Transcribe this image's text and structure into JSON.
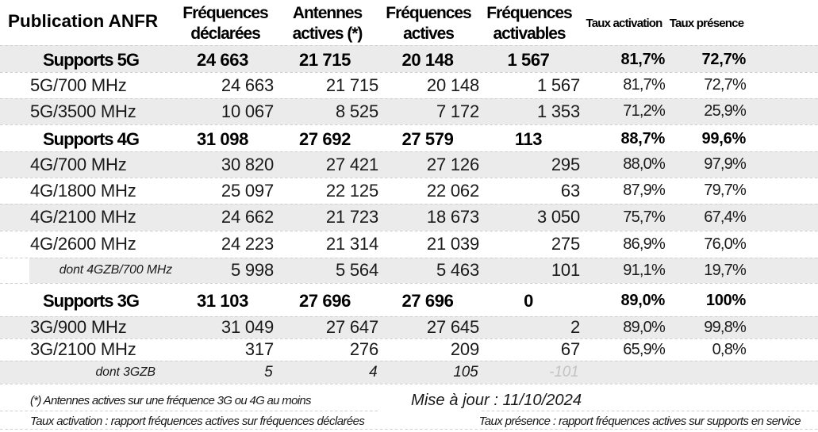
{
  "chart_data": {
    "type": "table",
    "title": "Publication ANFR",
    "columns": [
      "Fréquences déclarées",
      "Antennes actives (*)",
      "Fréquences actives",
      "Fréquences activables",
      "Taux activation",
      "Taux présence"
    ],
    "rows": [
      {
        "label": "Supports 5G",
        "values": [
          "24 663",
          "21 715",
          "20 148",
          "1 567",
          "81,7%",
          "72,7%"
        ]
      },
      {
        "label": "5G/700 MHz",
        "values": [
          "24 663",
          "21 715",
          "20 148",
          "1 567",
          "81,7%",
          "72,7%"
        ]
      },
      {
        "label": "5G/3500 MHz",
        "values": [
          "10 067",
          "8 525",
          "7 172",
          "1 353",
          "71,2%",
          "25,9%"
        ]
      },
      {
        "label": "Supports 4G",
        "values": [
          "31 098",
          "27 692",
          "27 579",
          "113",
          "88,7%",
          "99,6%"
        ]
      },
      {
        "label": "4G/700 MHz",
        "values": [
          "30 820",
          "27 421",
          "27 126",
          "295",
          "88,0%",
          "97,9%"
        ]
      },
      {
        "label": "4G/1800 MHz",
        "values": [
          "25 097",
          "22 125",
          "22 062",
          "63",
          "87,9%",
          "79,7%"
        ]
      },
      {
        "label": "4G/2100 MHz",
        "values": [
          "24 662",
          "21 723",
          "18 673",
          "3 050",
          "75,7%",
          "67,4%"
        ]
      },
      {
        "label": "4G/2600 MHz",
        "values": [
          "24 223",
          "21 314",
          "21 039",
          "275",
          "86,9%",
          "76,0%"
        ]
      },
      {
        "label": "dont 4GZB/700 MHz",
        "values": [
          "5 998",
          "5 564",
          "5 463",
          "101",
          "91,1%",
          "19,7%"
        ]
      },
      {
        "label": "Supports 3G",
        "values": [
          "31 103",
          "27 696",
          "27 696",
          "0",
          "89,0%",
          "100%"
        ]
      },
      {
        "label": "3G/900 MHz",
        "values": [
          "31 049",
          "27 647",
          "27 645",
          "2",
          "89,0%",
          "99,8%"
        ]
      },
      {
        "label": "3G/2100 MHz",
        "values": [
          "317",
          "276",
          "209",
          "67",
          "65,9%",
          "0,8%"
        ]
      },
      {
        "label": "dont 3GZB",
        "values": [
          "5",
          "4",
          "105",
          "-101",
          "",
          ""
        ]
      }
    ],
    "footnotes": [
      "(*) Antennes actives sur une fréquence 3G ou 4G au moins",
      "Mise à jour : 11/10/2024",
      "Taux activation : rapport fréquences actives sur fréquences déclarées",
      "Taux présence : rapport fréquences actives sur supports en service"
    ]
  },
  "header": {
    "title": "Publication ANFR",
    "columns": [
      {
        "id": "declarees",
        "line1": "Fréquences",
        "line2": "déclarées"
      },
      {
        "id": "antennes",
        "line1": "Antennes",
        "line2": "actives (*)"
      },
      {
        "id": "actives",
        "line1": "Fréquences",
        "line2": "actives"
      },
      {
        "id": "activables",
        "line1": "Fréquences",
        "line2": "activables"
      },
      {
        "id": "taux-activation",
        "line1": "Taux activation",
        "line2": "",
        "small": true
      },
      {
        "id": "taux-presence",
        "line1": "Taux présence",
        "line2": "",
        "small": true
      }
    ]
  },
  "rows": [
    {
      "id": "supports5g",
      "type": "section",
      "label": "Supports 5G",
      "values": [
        "24 663",
        "21 715",
        "20 148",
        "1 567",
        "81,7%",
        "72,7%"
      ]
    },
    {
      "id": "5g700",
      "type": "freq",
      "label": "5G/700 MHz",
      "values": [
        "24 663",
        "21 715",
        "20 148",
        "1 567",
        "81,7%",
        "72,7%"
      ]
    },
    {
      "id": "5g3500",
      "type": "freq",
      "label": "5G/3500 MHz",
      "values": [
        "10 067",
        "8 525",
        "7 172",
        "1 353",
        "71,2%",
        "25,9%"
      ]
    },
    {
      "id": "supports4g",
      "type": "section",
      "label": "Supports 4G",
      "values": [
        "31 098",
        "27 692",
        "27 579",
        "113",
        "88,7%",
        "99,6%"
      ]
    },
    {
      "id": "4g700",
      "type": "freq",
      "label": "4G/700 MHz",
      "values": [
        "30 820",
        "27 421",
        "27 126",
        "295",
        "88,0%",
        "97,9%"
      ]
    },
    {
      "id": "4g1800",
      "type": "freq",
      "label": "4G/1800 MHz",
      "values": [
        "25 097",
        "22 125",
        "22 062",
        "63",
        "87,9%",
        "79,7%"
      ]
    },
    {
      "id": "4g2100",
      "type": "freq",
      "label": "4G/2100 MHz",
      "values": [
        "24 662",
        "21 723",
        "18 673",
        "3 050",
        "75,7%",
        "67,4%"
      ]
    },
    {
      "id": "4g2600",
      "type": "freq",
      "label": "4G/2600 MHz",
      "values": [
        "24 223",
        "21 314",
        "21 039",
        "275",
        "86,9%",
        "76,0%"
      ]
    },
    {
      "id": "dont4gzb",
      "type": "dont",
      "label": "dont 4GZB/700 MHz",
      "notch": true,
      "values": [
        "5 998",
        "5 564",
        "5 463",
        "101",
        "91,1%",
        "19,7%"
      ]
    },
    {
      "id": "supports3g",
      "type": "section",
      "label": "Supports 3G",
      "values": [
        "31 103",
        "27 696",
        "27 696",
        "0",
        "89,0%",
        "100%"
      ]
    },
    {
      "id": "3g900",
      "type": "freq",
      "label": "3G/900 MHz",
      "values": [
        "31 049",
        "27 647",
        "27 645",
        "2",
        "89,0%",
        "99,8%"
      ]
    },
    {
      "id": "3g2100",
      "type": "freq",
      "label": "3G/2100 MHz",
      "values": [
        "317",
        "276",
        "209",
        "67",
        "65,9%",
        "0,8%"
      ]
    },
    {
      "id": "dont3gzb",
      "type": "dont",
      "label": "dont 3GZB",
      "values": [
        "5",
        "4",
        "105",
        "-101",
        "",
        ""
      ],
      "muted": [
        3
      ]
    }
  ],
  "footer": {
    "note_asterisk": "(*) Antennes actives sur une fréquence 3G ou 4G au moins",
    "updated": "Mise à jour : 11/10/2024",
    "note_activation": "Taux activation : rapport fréquences actives sur fréquences déclarées",
    "note_presence": "Taux présence : rapport fréquences actives sur supports en service"
  },
  "colors": {
    "stripe": "#ebebeb",
    "dash": "#cfcfcf",
    "text": "#1a1a1a",
    "bold_text": "#000000",
    "muted": "#c3c3c3"
  }
}
